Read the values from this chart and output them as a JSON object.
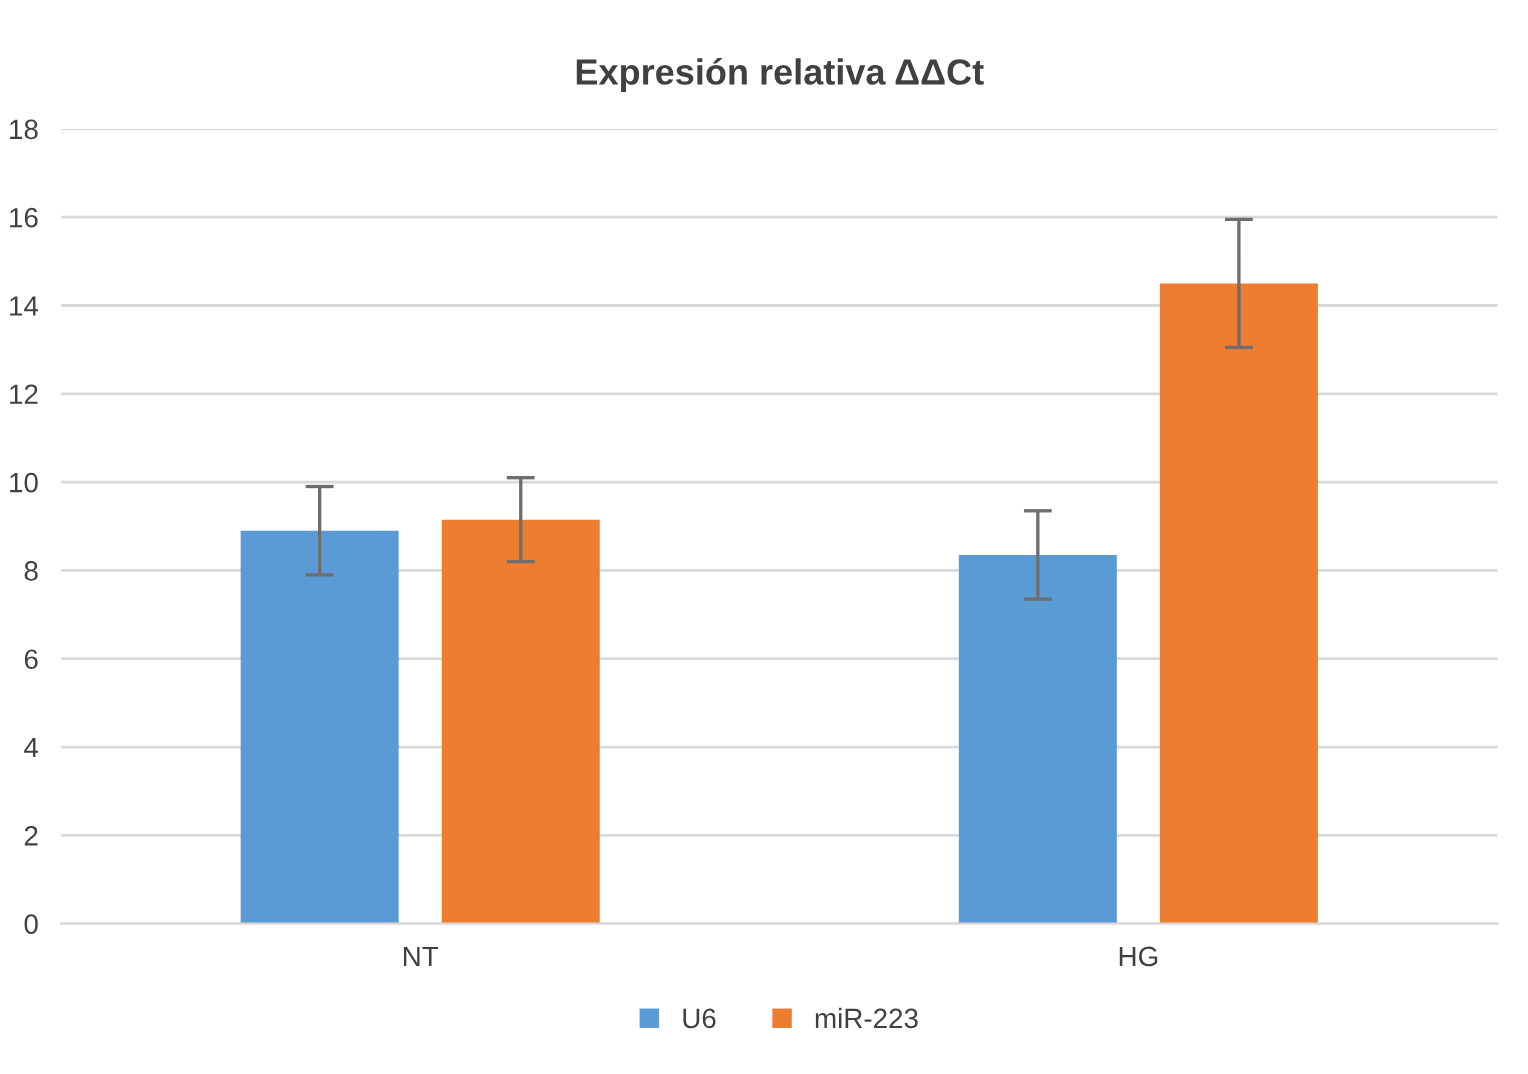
{
  "chart_data": {
    "type": "bar",
    "title": "Expresión relativa ΔΔCt",
    "categories": [
      "NT",
      "HG"
    ],
    "series": [
      {
        "name": "U6",
        "color": "#5b9bd5",
        "values": [
          8.9,
          8.35
        ],
        "errors": [
          1.0,
          1.0
        ]
      },
      {
        "name": "miR-223",
        "color": "#ed7d31",
        "values": [
          9.15,
          14.5
        ],
        "errors": [
          0.95,
          1.45
        ]
      }
    ],
    "ylim": [
      0,
      18
    ],
    "yticks": [
      0,
      2,
      4,
      6,
      8,
      10,
      12,
      14,
      16,
      18
    ],
    "grid": "y",
    "legend": "bottom"
  }
}
